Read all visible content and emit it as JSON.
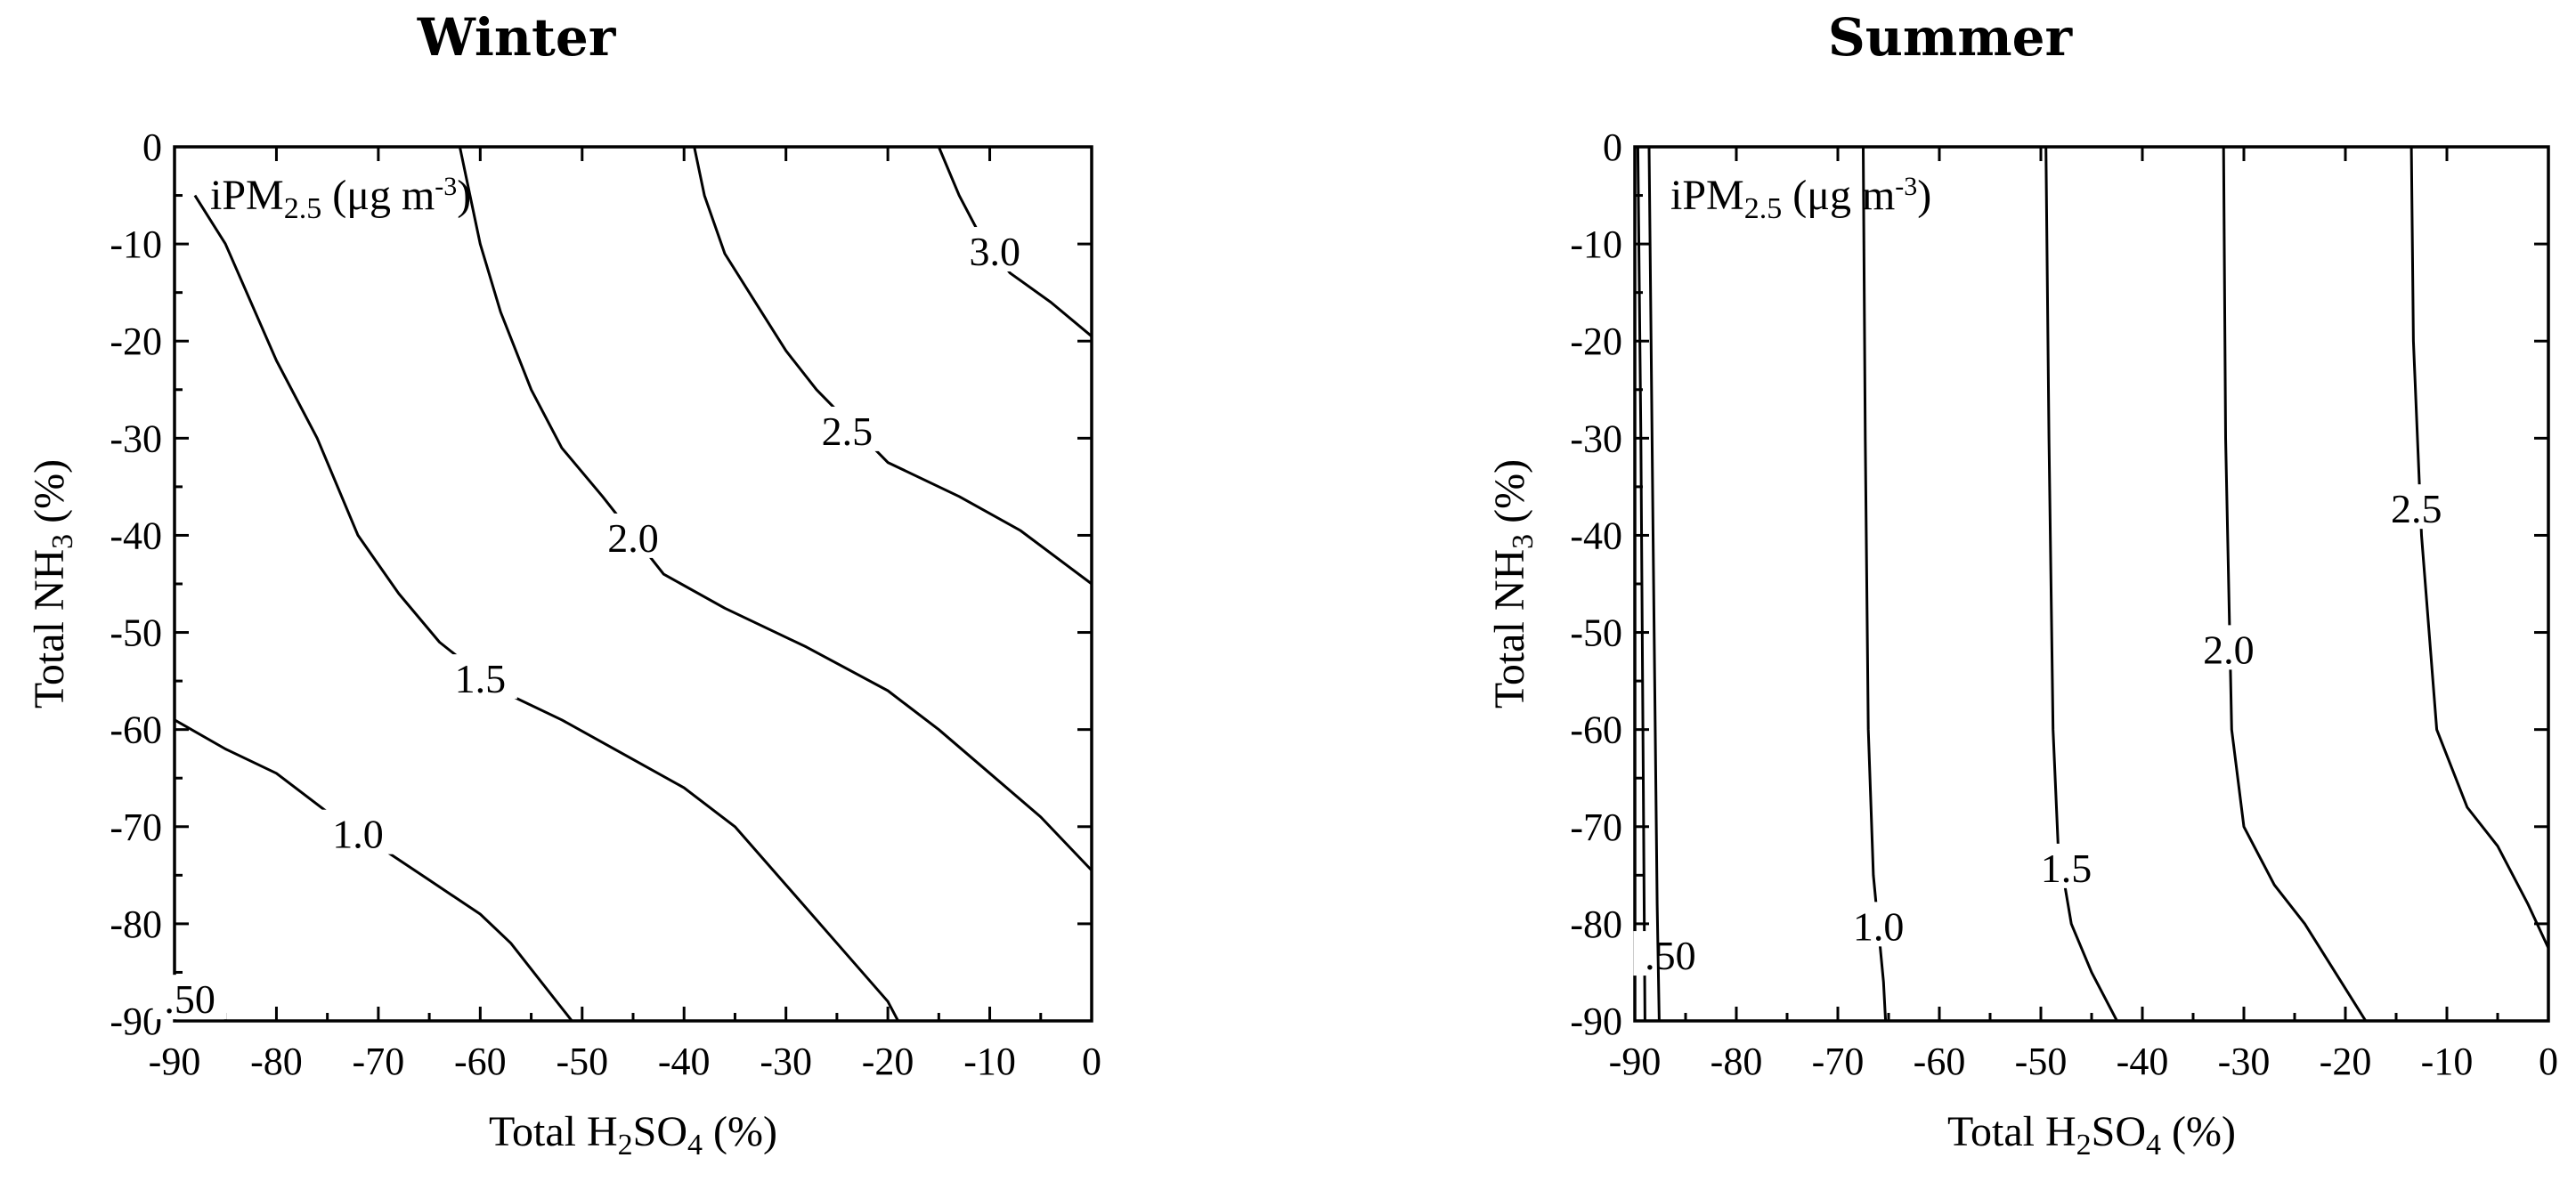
{
  "chart_data": [
    {
      "type": "contour",
      "title": "Winter",
      "xlabel": {
        "pre": "Total H",
        "sub": "2",
        "mid": "SO",
        "sub2": "4",
        "post": " (%)"
      },
      "ylabel": {
        "pre": "Total NH",
        "sub": "3",
        "post": " (%)"
      },
      "annotation": {
        "pre": "iPM",
        "sub": "2.5",
        "mid": " (μg m",
        "sup": "-3",
        "post": ")"
      },
      "xlim": [
        -90,
        0
      ],
      "ylim": [
        -90,
        0
      ],
      "xticks": [
        "-90",
        "-80",
        "-70",
        "-60",
        "-50",
        "-40",
        "-30",
        "-20",
        "-10",
        "0"
      ],
      "yticks": [
        "0",
        "-10",
        "-20",
        "-30",
        "-40",
        "-50",
        "-60",
        "-70",
        "-80",
        "-90"
      ],
      "contours": [
        {
          "level": "0.50",
          "label": ".50",
          "label_at": [
            -88.5,
            -88
          ],
          "points": []
        },
        {
          "level": "1.0",
          "label": "1.0",
          "label_at": [
            -72,
            -71
          ],
          "points": [
            [
              -90,
              -59
            ],
            [
              -85,
              -62
            ],
            [
              -80,
              -64.5
            ],
            [
              -75,
              -68.5
            ],
            [
              -70,
              -72
            ],
            [
              -65,
              -75.5
            ],
            [
              -60,
              -79
            ],
            [
              -57,
              -82
            ],
            [
              -54,
              -86
            ],
            [
              -51,
              -90
            ]
          ]
        },
        {
          "level": "1.5",
          "label": "1.5",
          "label_at": [
            -60,
            -55
          ],
          "points": [
            [
              -88,
              -5
            ],
            [
              -85,
              -10
            ],
            [
              -80,
              -22
            ],
            [
              -76,
              -30
            ],
            [
              -72,
              -40
            ],
            [
              -68,
              -46
            ],
            [
              -64,
              -51
            ],
            [
              -58,
              -56
            ],
            [
              -52,
              -59
            ],
            [
              -46,
              -62.5
            ],
            [
              -40,
              -66
            ],
            [
              -35,
              -70
            ],
            [
              -30,
              -76
            ],
            [
              -25,
              -82
            ],
            [
              -20,
              -88
            ],
            [
              -19,
              -90
            ]
          ]
        },
        {
          "level": "2.0",
          "label": "2.0",
          "label_at": [
            -45,
            -40.5
          ],
          "points": [
            [
              -62,
              0
            ],
            [
              -60,
              -10
            ],
            [
              -58,
              -17
            ],
            [
              -55,
              -25
            ],
            [
              -52,
              -31
            ],
            [
              -48,
              -36
            ],
            [
              -42,
              -44
            ],
            [
              -36,
              -47.5
            ],
            [
              -28,
              -51.5
            ],
            [
              -20,
              -56
            ],
            [
              -15,
              -60
            ],
            [
              -10,
              -64.5
            ],
            [
              -5,
              -69
            ],
            [
              0,
              -74.5
            ]
          ]
        },
        {
          "level": "2.5",
          "label": "2.5",
          "label_at": [
            -24,
            -29.5
          ],
          "points": [
            [
              -39,
              0
            ],
            [
              -38,
              -5
            ],
            [
              -36,
              -11
            ],
            [
              -33,
              -16
            ],
            [
              -30,
              -21
            ],
            [
              -27,
              -25
            ],
            [
              -20,
              -32.5
            ],
            [
              -13,
              -36
            ],
            [
              -7,
              -39.5
            ],
            [
              0,
              -45
            ]
          ]
        },
        {
          "level": "3.0",
          "label": "3.0",
          "label_at": [
            -9.5,
            -11
          ],
          "points": [
            [
              -15,
              0
            ],
            [
              -13,
              -5
            ],
            [
              -11,
              -9
            ],
            [
              -8,
              -13
            ],
            [
              -4,
              -16
            ],
            [
              0,
              -19.5
            ]
          ]
        }
      ]
    },
    {
      "type": "contour",
      "title": "Summer",
      "xlabel": {
        "pre": "Total H",
        "sub": "2",
        "mid": "SO",
        "sub2": "4",
        "post": " (%)"
      },
      "ylabel": {
        "pre": "Total NH",
        "sub": "3",
        "post": " (%)"
      },
      "annotation": {
        "pre": "iPM",
        "sub": "2.5",
        "mid": " (μg m",
        "sup": "-3",
        "post": ")"
      },
      "xlim": [
        -90,
        0
      ],
      "ylim": [
        -90,
        0
      ],
      "xticks": [
        "-90",
        "-80",
        "-70",
        "-60",
        "-50",
        "-40",
        "-30",
        "-20",
        "-10",
        "0"
      ],
      "yticks": [
        "0",
        "-10",
        "-20",
        "-30",
        "-40",
        "-50",
        "-60",
        "-70",
        "-80",
        "-90"
      ],
      "contours": [
        {
          "level": "0.50",
          "label": ".50",
          "label_at": [
            -86.5,
            -83.5
          ],
          "points": [
            [
              -89.7,
              0
            ],
            [
              -89.4,
              -30
            ],
            [
              -89.2,
              -60
            ],
            [
              -89,
              -90
            ]
          ]
        },
        {
          "level": "0.50b",
          "label": "",
          "label_at": null,
          "points": [
            [
              -88.6,
              0
            ],
            [
              -88.2,
              -40
            ],
            [
              -87.8,
              -78
            ],
            [
              -87.6,
              -90
            ]
          ]
        },
        {
          "level": "1.0",
          "label": "1.0",
          "label_at": [
            -66,
            -80.5
          ],
          "points": [
            [
              -67.5,
              0
            ],
            [
              -67.3,
              -30
            ],
            [
              -67,
              -60
            ],
            [
              -66.5,
              -75
            ],
            [
              -65.5,
              -86
            ],
            [
              -65.3,
              -90
            ]
          ]
        },
        {
          "level": "1.5",
          "label": "1.5",
          "label_at": [
            -47.5,
            -74.5
          ],
          "points": [
            [
              -49.5,
              0
            ],
            [
              -49.2,
              -30
            ],
            [
              -48.8,
              -60
            ],
            [
              -48.3,
              -72
            ],
            [
              -47,
              -80
            ],
            [
              -45,
              -85
            ],
            [
              -42.5,
              -90
            ]
          ]
        },
        {
          "level": "2.0",
          "label": "2.0",
          "label_at": [
            -31.5,
            -52
          ],
          "points": [
            [
              -32,
              0
            ],
            [
              -31.8,
              -30
            ],
            [
              -31.2,
              -60
            ],
            [
              -30,
              -70
            ],
            [
              -27,
              -76
            ],
            [
              -24,
              -80
            ],
            [
              -21,
              -85
            ],
            [
              -18,
              -90
            ]
          ]
        },
        {
          "level": "2.5",
          "label": "2.5",
          "label_at": [
            -13,
            -37.5
          ],
          "points": [
            [
              -13.5,
              0
            ],
            [
              -13.3,
              -20
            ],
            [
              -12.5,
              -40
            ],
            [
              -11,
              -60
            ],
            [
              -8,
              -68
            ],
            [
              -5,
              -72
            ],
            [
              -2,
              -78
            ],
            [
              0,
              -82.5
            ]
          ]
        }
      ]
    }
  ]
}
